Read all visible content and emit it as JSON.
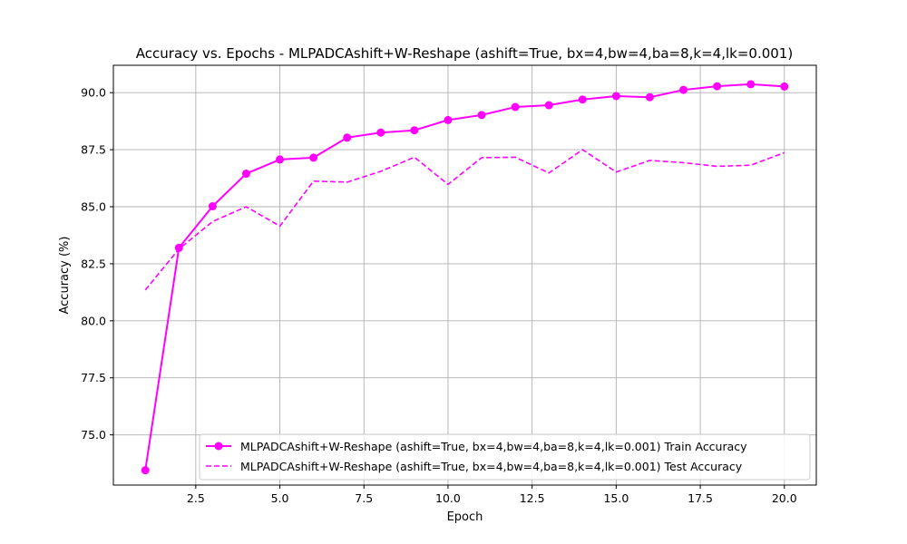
{
  "chart_data": {
    "type": "line",
    "title": "Accuracy vs. Epochs - MLPADCAshift+W-Reshape (ashift=True, bx=4,bw=4,ba=8,k=4,lk=0.001)",
    "xlabel": "Epoch",
    "ylabel": "Accuracy (%)",
    "xlim": [
      0.05,
      20.95
    ],
    "ylim": [
      72.8,
      91.2
    ],
    "xticks": [
      2.5,
      5.0,
      7.5,
      10.0,
      12.5,
      15.0,
      17.5,
      20.0
    ],
    "xtick_labels": [
      "2.5",
      "5.0",
      "7.5",
      "10.0",
      "12.5",
      "15.0",
      "17.5",
      "20.0"
    ],
    "yticks": [
      75.0,
      77.5,
      80.0,
      82.5,
      85.0,
      87.5,
      90.0
    ],
    "ytick_labels": [
      "75.0",
      "77.5",
      "80.0",
      "82.5",
      "85.0",
      "87.5",
      "90.0"
    ],
    "grid": true,
    "legend_position": "lower-right",
    "x": [
      1,
      2,
      3,
      4,
      5,
      6,
      7,
      8,
      9,
      10,
      11,
      12,
      13,
      14,
      15,
      16,
      17,
      18,
      19,
      20
    ],
    "series": [
      {
        "name": "MLPADCAshift+W-Reshape (ashift=True, bx=4,bw=4,ba=8,k=4,lk=0.001) Train Accuracy",
        "style": "solid",
        "marker": "circle",
        "color": "#ff00ff",
        "values": [
          73.45,
          83.2,
          85.02,
          86.45,
          87.07,
          87.15,
          88.03,
          88.25,
          88.35,
          88.8,
          89.02,
          89.37,
          89.45,
          89.7,
          89.85,
          89.8,
          90.12,
          90.28,
          90.37,
          90.27
        ]
      },
      {
        "name": "MLPADCAshift+W-Reshape (ashift=True, bx=4,bw=4,ba=8,k=4,lk=0.001) Test Accuracy",
        "style": "dashed",
        "marker": "none",
        "color": "#ff00ff",
        "values": [
          81.35,
          83.15,
          84.35,
          85.0,
          84.15,
          86.12,
          86.08,
          86.55,
          87.17,
          85.98,
          87.15,
          87.17,
          86.48,
          87.5,
          86.52,
          87.03,
          86.93,
          86.77,
          86.82,
          87.37
        ]
      }
    ]
  }
}
